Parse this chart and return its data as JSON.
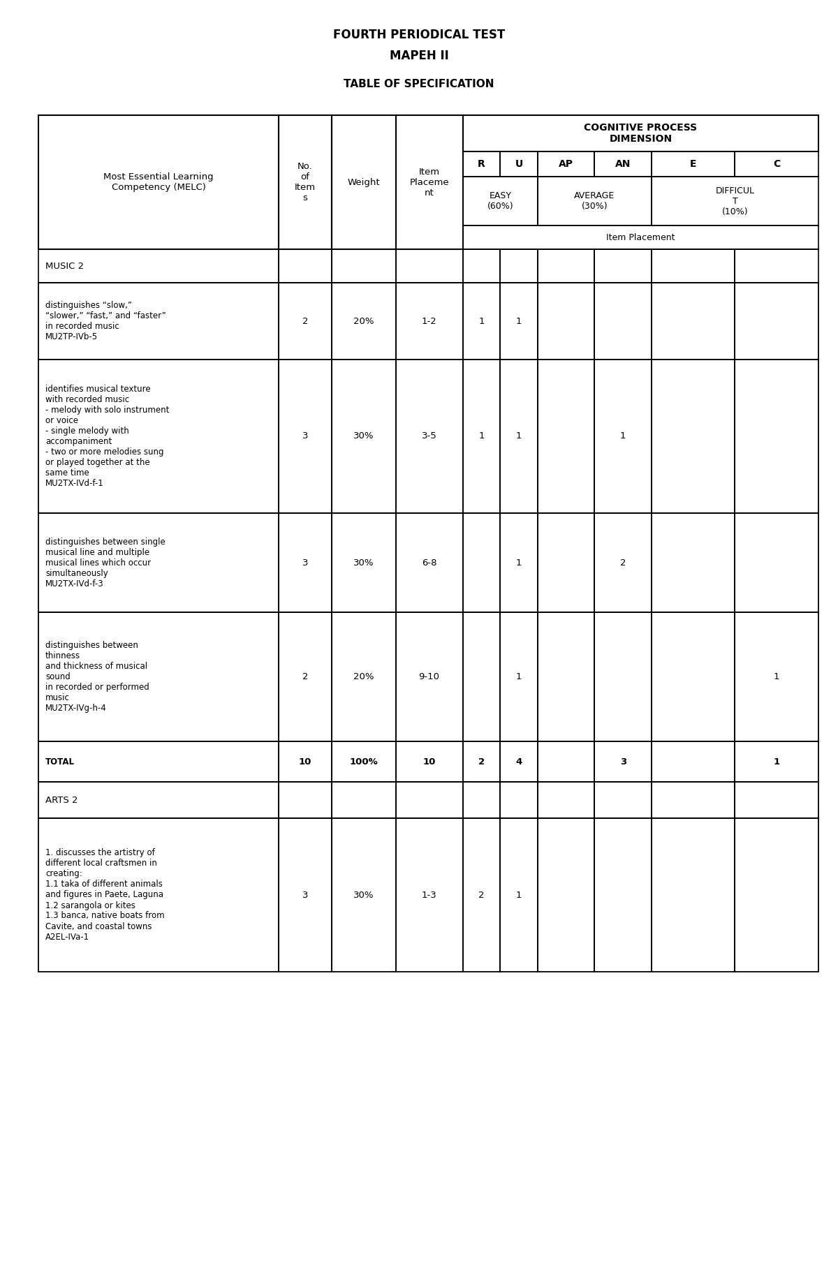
{
  "title_line1": "FOURTH PERIODICAL TEST",
  "title_line2": "MAPEH II",
  "subtitle": "TABLE OF SPECIFICATION",
  "cognitive_header": "COGNITIVE PROCESS\nDIMENSION",
  "easy_label": "EASY\n(60%)",
  "average_label": "AVERAGE\n(30%)",
  "difficult_label": "DIFFICUL\nT\n(10%)",
  "item_placement_label": "Item Placement",
  "music_section": "MUSIC 2",
  "arts_section": "ARTS 2",
  "melc_header": "Most Essential Learning\nCompetency (MELC)",
  "no_header": "No.\nof\nItem\ns",
  "weight_header": "Weight",
  "item_header": "Item\nPlaceme\nnt",
  "rows": [
    {
      "melc": "distinguishes “slow,”\n“slower,” “fast,” and “faster”\nin recorded music\nMU2TP-IVb-5",
      "no": "2",
      "weight": "20%",
      "item": "1-2",
      "R": "1",
      "U": "1",
      "AP": "",
      "AN": "",
      "E": "",
      "C": ""
    },
    {
      "melc": "identifies musical texture\nwith recorded music\n- melody with solo instrument\nor voice\n- single melody with\naccompaniment\n- two or more melodies sung\nor played together at the\nsame time\nMU2TX-IVd-f-1",
      "no": "3",
      "weight": "30%",
      "item": "3-5",
      "R": "1",
      "U": "1",
      "AP": "",
      "AN": "1",
      "E": "",
      "C": ""
    },
    {
      "melc": "distinguishes between single\nmusical line and multiple\nmusical lines which occur\nsimultaneously\nMU2TX-IVd-f-3",
      "no": "3",
      "weight": "30%",
      "item": "6-8",
      "R": "",
      "U": "1",
      "AP": "",
      "AN": "2",
      "E": "",
      "C": ""
    },
    {
      "melc": "distinguishes between\nthinness\nand thickness of musical\nsound\nin recorded or performed\nmusic\nMU2TX-IVg-h-4",
      "no": "2",
      "weight": "20%",
      "item": "9-10",
      "R": "",
      "U": "1",
      "AP": "",
      "AN": "",
      "E": "",
      "C": "1"
    }
  ],
  "total_row": {
    "melc": "TOTAL",
    "no": "10",
    "weight": "100%",
    "item": "10",
    "R": "2",
    "U": "4",
    "AP": "",
    "AN": "3",
    "E": "",
    "C": "1"
  },
  "arts_rows": [
    {
      "melc": "1. discusses the artistry of\ndifferent local craftsmen in\ncreating:\n1.1 taka of different animals\nand figures in Paete, Laguna\n1.2 sarangola or kites\n1.3 banca, native boats from\nCavite, and coastal towns\nA2EL-IVa-1",
      "no": "3",
      "weight": "30%",
      "item": "1-3",
      "R": "2",
      "U": "1",
      "AP": "",
      "AN": "",
      "E": "",
      "C": ""
    }
  ],
  "bg_color": "#ffffff",
  "border_color": "#000000",
  "fig_width": 12.0,
  "fig_height": 18.35,
  "dpi": 100
}
